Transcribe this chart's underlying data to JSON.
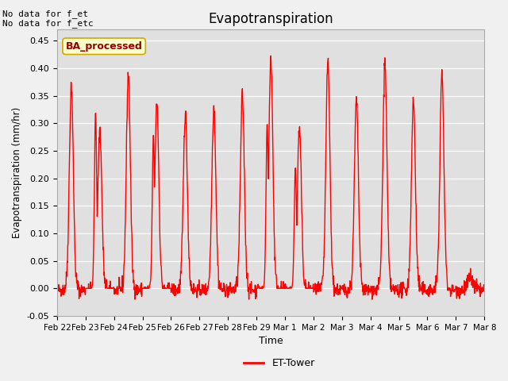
{
  "title": "Evapotranspiration",
  "ylabel": "Evapotranspiration (mm/hr)",
  "xlabel": "Time",
  "ylim": [
    -0.05,
    0.47
  ],
  "xlim": [
    0,
    15
  ],
  "n_days": 15,
  "background_color": "#e0e0e0",
  "fig_background_color": "#f0f0f0",
  "line_color": "#ff0000",
  "line_width": 1.0,
  "legend_label": "ET-Tower",
  "legend_box_label": "BA_processed",
  "text_no_data": "No data for f_et\nNo data for f_etc",
  "xtick_labels": [
    "Feb 22",
    "Feb 23",
    "Feb 24",
    "Feb 25",
    "Feb 26",
    "Feb 27",
    "Feb 28",
    "Feb 29",
    "Mar 1",
    "Mar 2",
    "Mar 3",
    "Mar 4",
    "Mar 5",
    "Mar 6",
    "Mar 7",
    "Mar 8"
  ],
  "ytick_labels": [
    "-0.05",
    "0.00",
    "0.05",
    "0.10",
    "0.15",
    "0.20",
    "0.25",
    "0.30",
    "0.35",
    "0.40",
    "0.45"
  ],
  "ytick_values": [
    -0.05,
    0.0,
    0.05,
    0.1,
    0.15,
    0.2,
    0.25,
    0.3,
    0.35,
    0.4,
    0.45
  ],
  "day_peaks": [
    0.37,
    0.29,
    0.39,
    0.34,
    0.32,
    0.33,
    0.35,
    0.42,
    0.29,
    0.41,
    0.34,
    0.41,
    0.34,
    0.39,
    0.02
  ]
}
